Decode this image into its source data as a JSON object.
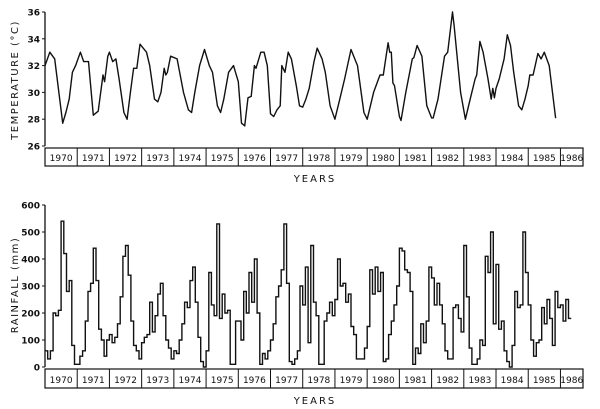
{
  "chart_data": [
    {
      "type": "line",
      "ylabel": "TEMPERATURE (°C)",
      "xlabel": "YEARS",
      "ylim": [
        26,
        36
      ],
      "yticks": [
        "26",
        "28",
        "30",
        "32",
        "34",
        "36"
      ],
      "xtick_labels": [
        "1970",
        "1971",
        "1972",
        "1973",
        "1974",
        "1975",
        "1976",
        "1977",
        "1978",
        "1979",
        "1980",
        "1981",
        "1982",
        "1983",
        "1984",
        "1985",
        "1986"
      ],
      "grid": false,
      "color": "#111111",
      "points": [
        [
          1970.0,
          32
        ],
        [
          1970.15,
          33
        ],
        [
          1970.3,
          32.5
        ],
        [
          1970.55,
          27.7
        ],
        [
          1970.65,
          28.5
        ],
        [
          1970.75,
          29.5
        ],
        [
          1970.85,
          31.5
        ],
        [
          1970.95,
          32
        ],
        [
          1971.1,
          33
        ],
        [
          1971.2,
          32.3
        ],
        [
          1971.35,
          32.3
        ],
        [
          1971.5,
          28.3
        ],
        [
          1971.65,
          28.6
        ],
        [
          1971.8,
          31.3
        ],
        [
          1971.85,
          30.8
        ],
        [
          1971.95,
          32.7
        ],
        [
          1972.0,
          33
        ],
        [
          1972.1,
          32.3
        ],
        [
          1972.2,
          32.5
        ],
        [
          1972.3,
          31
        ],
        [
          1972.45,
          28.5
        ],
        [
          1972.55,
          28
        ],
        [
          1972.65,
          30
        ],
        [
          1972.75,
          31.8
        ],
        [
          1972.85,
          31.8
        ],
        [
          1972.95,
          33.6
        ],
        [
          1973.15,
          33
        ],
        [
          1973.25,
          32
        ],
        [
          1973.4,
          29.5
        ],
        [
          1973.5,
          29.3
        ],
        [
          1973.6,
          30
        ],
        [
          1973.7,
          31.8
        ],
        [
          1973.75,
          31.3
        ],
        [
          1973.8,
          31.5
        ],
        [
          1973.9,
          32.7
        ],
        [
          1974.1,
          32.5
        ],
        [
          1974.3,
          30
        ],
        [
          1974.45,
          28.7
        ],
        [
          1974.55,
          28.5
        ],
        [
          1974.65,
          30
        ],
        [
          1974.8,
          32
        ],
        [
          1974.95,
          33.2
        ],
        [
          1975.1,
          32
        ],
        [
          1975.2,
          31.5
        ],
        [
          1975.35,
          29
        ],
        [
          1975.45,
          28.5
        ],
        [
          1975.55,
          29.5
        ],
        [
          1975.7,
          31.5
        ],
        [
          1975.85,
          32
        ],
        [
          1975.95,
          31.2
        ],
        [
          1976.0,
          30.8
        ],
        [
          1976.1,
          27.7
        ],
        [
          1976.2,
          27.5
        ],
        [
          1976.3,
          29.6
        ],
        [
          1976.4,
          29.7
        ],
        [
          1976.5,
          32
        ],
        [
          1976.55,
          31.8
        ],
        [
          1976.7,
          33
        ],
        [
          1976.8,
          33
        ],
        [
          1976.9,
          32
        ],
        [
          1977.0,
          28.4
        ],
        [
          1977.1,
          28.2
        ],
        [
          1977.2,
          28.7
        ],
        [
          1977.3,
          29
        ],
        [
          1977.35,
          32
        ],
        [
          1977.45,
          31.5
        ],
        [
          1977.55,
          33
        ],
        [
          1977.65,
          32.5
        ],
        [
          1977.8,
          30.5
        ],
        [
          1977.9,
          29
        ],
        [
          1978.0,
          28.9
        ],
        [
          1978.1,
          29.5
        ],
        [
          1978.2,
          30.3
        ],
        [
          1978.35,
          32.3
        ],
        [
          1978.45,
          33.3
        ],
        [
          1978.6,
          32.5
        ],
        [
          1978.7,
          31.5
        ],
        [
          1978.85,
          29
        ],
        [
          1979.0,
          28
        ],
        [
          1979.15,
          29.5
        ],
        [
          1979.3,
          31
        ],
        [
          1979.5,
          33.2
        ],
        [
          1979.7,
          32
        ],
        [
          1979.9,
          28.5
        ],
        [
          1980.0,
          28
        ],
        [
          1980.2,
          30
        ],
        [
          1980.4,
          31.3
        ],
        [
          1980.5,
          31.3
        ],
        [
          1980.65,
          33.7
        ],
        [
          1980.7,
          33
        ],
        [
          1980.75,
          33
        ],
        [
          1980.8,
          30.7
        ],
        [
          1980.85,
          30.5
        ],
        [
          1981.0,
          28.2
        ],
        [
          1981.05,
          27.9
        ],
        [
          1981.2,
          30
        ],
        [
          1981.4,
          32.5
        ],
        [
          1981.45,
          32.6
        ],
        [
          1981.55,
          33.5
        ],
        [
          1981.7,
          32.7
        ],
        [
          1981.85,
          29
        ],
        [
          1982.0,
          28.1
        ],
        [
          1982.05,
          28.1
        ],
        [
          1982.2,
          29.5
        ],
        [
          1982.4,
          32.7
        ],
        [
          1982.5,
          33
        ],
        [
          1982.65,
          36
        ],
        [
          1982.7,
          35
        ],
        [
          1982.9,
          30
        ],
        [
          1983.05,
          28
        ],
        [
          1983.2,
          29.5
        ],
        [
          1983.35,
          31
        ],
        [
          1983.4,
          31.3
        ],
        [
          1983.5,
          33.8
        ],
        [
          1983.6,
          33
        ],
        [
          1983.75,
          31
        ],
        [
          1983.85,
          29.5
        ],
        [
          1983.9,
          30.3
        ],
        [
          1983.95,
          29.6
        ],
        [
          1984.0,
          30.3
        ],
        [
          1984.1,
          31
        ],
        [
          1984.25,
          32.5
        ],
        [
          1984.35,
          34.3
        ],
        [
          1984.45,
          33.5
        ],
        [
          1984.55,
          31.5
        ],
        [
          1984.7,
          29
        ],
        [
          1984.8,
          28.7
        ],
        [
          1984.9,
          29.5
        ],
        [
          1985.0,
          30.5
        ],
        [
          1985.05,
          31.3
        ],
        [
          1985.15,
          31.3
        ],
        [
          1985.3,
          32.9
        ],
        [
          1985.4,
          32.5
        ],
        [
          1985.5,
          33
        ],
        [
          1985.65,
          32
        ],
        [
          1985.85,
          28.1
        ]
      ]
    },
    {
      "type": "bar",
      "style": "step",
      "ylabel": "RAINFALL (mm)",
      "xlabel": "YEARS",
      "ylim": [
        0,
        600
      ],
      "yticks": [
        "0",
        "100",
        "200",
        "300",
        "400",
        "500",
        "600"
      ],
      "xtick_labels": [
        "1970",
        "1971",
        "1972",
        "1973",
        "1974",
        "1975",
        "1976",
        "1977",
        "1978",
        "1979",
        "1980",
        "1981",
        "1982",
        "1983",
        "1984",
        "1985",
        "1986"
      ],
      "grid": false,
      "color": "#111111",
      "monthly_values": {
        "1970": [
          60,
          30,
          60,
          200,
          190,
          210,
          540,
          420,
          280,
          320,
          80,
          10
        ],
        "1971": [
          10,
          40,
          60,
          170,
          280,
          310,
          440,
          320,
          140,
          100,
          40,
          100
        ],
        "1972": [
          120,
          90,
          110,
          160,
          260,
          410,
          450,
          340,
          170,
          80,
          60,
          30
        ],
        "1973": [
          90,
          110,
          120,
          240,
          130,
          190,
          270,
          310,
          190,
          100,
          70,
          30
        ],
        "1974": [
          60,
          50,
          100,
          160,
          240,
          220,
          320,
          370,
          240,
          110,
          20,
          0
        ],
        "1975": [
          60,
          350,
          230,
          190,
          530,
          180,
          270,
          200,
          210,
          10,
          10,
          170
        ],
        "1976": [
          170,
          100,
          280,
          200,
          350,
          240,
          400,
          200,
          10,
          50,
          30,
          60
        ],
        "1977": [
          100,
          160,
          260,
          300,
          360,
          530,
          310,
          20,
          10,
          30,
          60,
          300
        ],
        "1978": [
          230,
          370,
          90,
          450,
          240,
          190,
          10,
          10,
          170,
          200,
          240,
          190
        ],
        "1979": [
          250,
          400,
          300,
          310,
          240,
          270,
          150,
          120,
          30,
          30,
          30,
          70
        ],
        "1980": [
          150,
          360,
          270,
          370,
          280,
          350,
          20,
          30,
          120,
          170,
          230,
          300
        ],
        "1981": [
          440,
          430,
          360,
          350,
          280,
          10,
          70,
          50,
          160,
          90,
          170,
          370
        ],
        "1982": [
          330,
          230,
          310,
          230,
          160,
          60,
          30,
          30,
          220,
          230,
          180,
          130
        ],
        "1983": [
          450,
          260,
          70,
          10,
          10,
          30,
          100,
          80,
          410,
          350,
          500,
          160
        ],
        "1984": [
          380,
          140,
          170,
          60,
          20,
          0,
          80,
          280,
          220,
          230,
          500,
          350
        ],
        "1985": [
          230,
          100,
          40,
          90,
          100,
          220,
          160,
          250,
          180,
          80,
          280,
          220
        ],
        "1986": [
          230,
          170,
          250,
          180
        ]
      }
    }
  ]
}
